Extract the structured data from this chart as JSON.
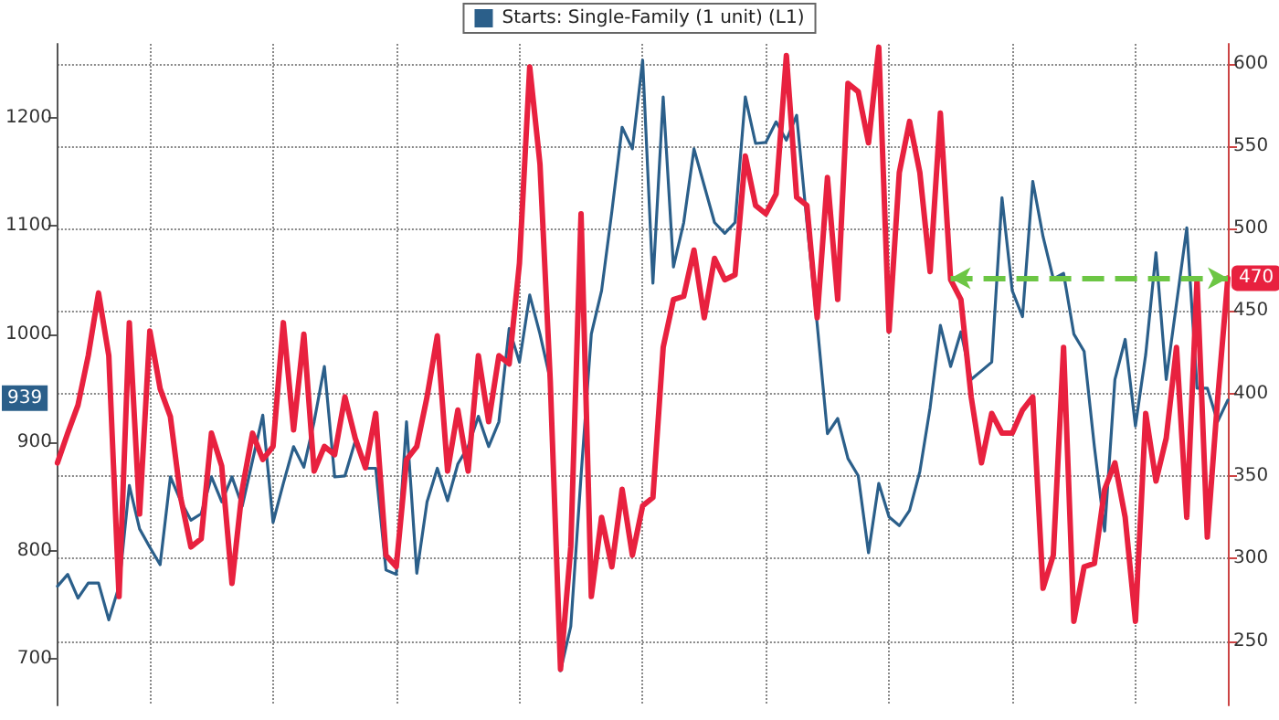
{
  "chart_data": {
    "type": "line",
    "categories": [
      null,
      null,
      null,
      null,
      null,
      null,
      null,
      null,
      null,
      null,
      null,
      null,
      null,
      null,
      null,
      null,
      null,
      null,
      null,
      null,
      null,
      null,
      null,
      null,
      null,
      null,
      null,
      null,
      null,
      null,
      null,
      null,
      null,
      null,
      null,
      null,
      null,
      null,
      null,
      null,
      null,
      null,
      null,
      null,
      null,
      null,
      null,
      null,
      null,
      null,
      null,
      null,
      null,
      null,
      null,
      null,
      null,
      null,
      null,
      null,
      null,
      null,
      null,
      null,
      null,
      null,
      null,
      null,
      null,
      null,
      null,
      null,
      null,
      null,
      null,
      null,
      null,
      null,
      null,
      null,
      null,
      null,
      null,
      null,
      null,
      null,
      null,
      null,
      null,
      null,
      null,
      null,
      null,
      null,
      null,
      null,
      null,
      null,
      null,
      null,
      null,
      null,
      null,
      null,
      null,
      null,
      null,
      null,
      null,
      null,
      null,
      null,
      null,
      null,
      null
    ],
    "series": [
      {
        "name": "Starts: Single-Family (1 unit) (L1)",
        "color": "#2b5f8a",
        "values": [
          767,
          778,
          756,
          770,
          770,
          736,
          767,
          860,
          820,
          803,
          787,
          868,
          846,
          828,
          834,
          868,
          845,
          868,
          841,
          883,
          925,
          826,
          862,
          896,
          877,
          919,
          970,
          868,
          869,
          901,
          876,
          876,
          782,
          778,
          919,
          779,
          845,
          876,
          846,
          880,
          896,
          924,
          896,
          919,
          1005,
          974,
          1036,
          1000,
          958,
          689,
          730,
          869,
          1000,
          1040,
          1113,
          1191,
          1171,
          1253,
          1047,
          1219,
          1062,
          1103,
          1171,
          1137,
          1103,
          1093,
          1103,
          1219,
          1176,
          1177,
          1196,
          1179,
          1202,
          1103,
          1009,
          908,
          922,
          885,
          869,
          798,
          862,
          831,
          823,
          837,
          873,
          932,
          1008,
          970,
          1002,
          958,
          966,
          974,
          1126,
          1040,
          1016,
          1141,
          1090,
          1051,
          1056,
          1000,
          984,
          896,
          818,
          958,
          995,
          915,
          981,
          1075,
          958,
          1028,
          1098,
          950,
          950,
          919,
          939
        ]
      },
      {
        "axis": "y2",
        "color": "#e8213f",
        "values": [
          358,
          376,
          393,
          423,
          461,
          423,
          277,
          443,
          327,
          438,
          403,
          386,
          337,
          307,
          312,
          376,
          356,
          285,
          342,
          376,
          360,
          368,
          443,
          378,
          436,
          353,
          368,
          363,
          398,
          373,
          355,
          388,
          302,
          295,
          360,
          368,
          398,
          435,
          353,
          390,
          353,
          423,
          383,
          423,
          418,
          479,
          598,
          539,
          408,
          233,
          307,
          509,
          277,
          325,
          295,
          342,
          302,
          332,
          337,
          428,
          457,
          459,
          487,
          446,
          482,
          469,
          472,
          544,
          514,
          509,
          521,
          605,
          519,
          514,
          446,
          531,
          457,
          588,
          583,
          552,
          610,
          438,
          534,
          565,
          534,
          474,
          570,
          469,
          457,
          398,
          358,
          388,
          376,
          376,
          390,
          398,
          282,
          302,
          428,
          262,
          295,
          297,
          342,
          358,
          325,
          262,
          388,
          347,
          373,
          428,
          325,
          469,
          313,
          396,
          470
        ],
        "value_labels": [
          null,
          null,
          null,
          null,
          null,
          null,
          null,
          null,
          null,
          null,
          null,
          null,
          null,
          null,
          null,
          null,
          null,
          null,
          null,
          null,
          null,
          null,
          null,
          null,
          null,
          null,
          null,
          null,
          null,
          null,
          null,
          null,
          null,
          null,
          null,
          null,
          null,
          null,
          null,
          null,
          null,
          null,
          null,
          null,
          null,
          null,
          null,
          null,
          null,
          null,
          null,
          null,
          null,
          null,
          null,
          null,
          null,
          null,
          null,
          null,
          null,
          null,
          null,
          null,
          null,
          null,
          null,
          null,
          null,
          null,
          null,
          null,
          null,
          null,
          null,
          null,
          null,
          null,
          null,
          null,
          null,
          null,
          null,
          null,
          null,
          null,
          null,
          null,
          null,
          null,
          null,
          null,
          null,
          null,
          null,
          null,
          null,
          null,
          null,
          null,
          null,
          null,
          null,
          null,
          null,
          null,
          null,
          null,
          null,
          null,
          null,
          null,
          null,
          null,
          "470"
        ]
      }
    ],
    "ylim": [
      657,
      1268
    ],
    "yticks": [
      700,
      800,
      900,
      1000,
      1100,
      1200
    ],
    "y2lim": [
      211,
      612
    ],
    "y2ticks": [
      250,
      300,
      350,
      400,
      450,
      500,
      550,
      600
    ],
    "ref_lines": [
      {
        "axis": "y2",
        "value": 470,
        "color": "#6cc644",
        "line_style": "dashed"
      }
    ],
    "annotations": [
      "939"
    ],
    "grid": true,
    "legend": "top",
    "marker": "none",
    "line_style": "solid"
  }
}
